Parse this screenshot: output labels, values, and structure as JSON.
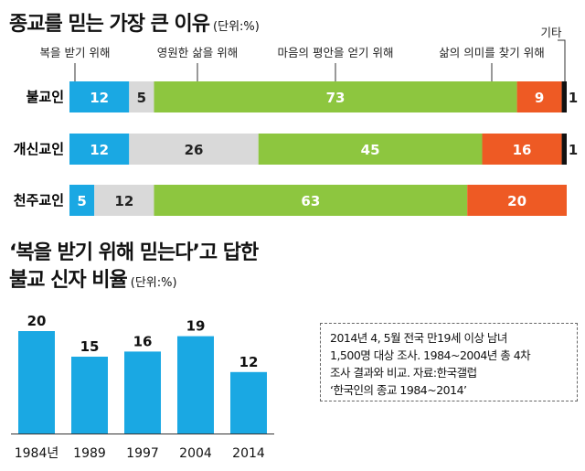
{
  "chart_data": [
    {
      "type": "bar",
      "orientation": "horizontal",
      "stacked": true,
      "title": "종교를 믿는 가장 큰 이유",
      "unit": "(단위:%)",
      "categories": [
        "불교인",
        "개신교인",
        "천주교인"
      ],
      "series": [
        {
          "name": "복을 받기 위해",
          "color": "#1aa8e3",
          "values": [
            12,
            12,
            5
          ]
        },
        {
          "name": "영원한 삶을 위해",
          "color": "#d9d9d9",
          "values": [
            5,
            26,
            12
          ]
        },
        {
          "name": "마음의 평안을 얻기 위해",
          "color": "#8dc63f",
          "values": [
            73,
            45,
            63
          ]
        },
        {
          "name": "삶의 의미를 찾기 위해",
          "color": "#ee5a24",
          "values": [
            9,
            16,
            20
          ]
        },
        {
          "name": "기타",
          "color": "#111111",
          "values": [
            1,
            1,
            0
          ]
        }
      ]
    },
    {
      "type": "bar",
      "title_lines": [
        "‘복을 받기 위해 믿는다’고 답한",
        "불교 신자 비율"
      ],
      "unit": "(단위:%)",
      "categories": [
        "1984년",
        "1989",
        "1997",
        "2004",
        "2014"
      ],
      "values": [
        20,
        15,
        16,
        19,
        12
      ],
      "color": "#1aa8e3"
    }
  ],
  "note": {
    "lines": [
      "2014년 4, 5월 전국 만19세 이상 남녀",
      "1,500명 대상 조사. 1984~2004년 총 4차",
      "조사 결과와 비교. 자료:한국갤럽",
      "‘한국인의 종교 1984~2014’"
    ]
  }
}
